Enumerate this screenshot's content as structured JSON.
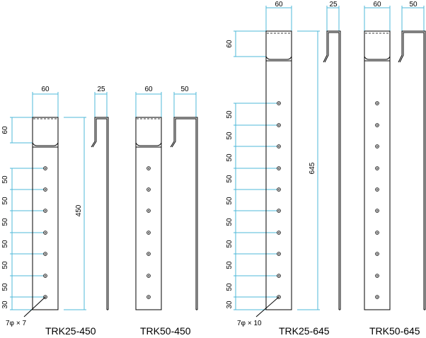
{
  "title": "",
  "brackets": [
    {
      "model": "TRK25-450",
      "width": "60",
      "depth": "25",
      "top": "60",
      "length": "450",
      "spacings": [
        "50",
        "50",
        "50",
        "50",
        "50",
        "50"
      ],
      "bottom": "30",
      "holes": 7,
      "hole_note": "7φ × 7",
      "long_leg": "450",
      "short_leg": "25"
    },
    {
      "model": "TRK50-450",
      "width": "60",
      "depth": "50",
      "holes": 7
    },
    {
      "model": "TRK25-645",
      "width": "60",
      "depth": "25",
      "top": "60",
      "length": "645",
      "spacings": [
        "50",
        "50",
        "50",
        "50",
        "50",
        "50",
        "50",
        "50",
        "50"
      ],
      "bottom": "30",
      "holes": 10,
      "hole_note": "7φ × 10"
    },
    {
      "model": "TRK50-645",
      "width": "60",
      "depth": "50",
      "holes": 10
    }
  ],
  "colors": {
    "dimension": "#4fb8d8",
    "outline": "#000000"
  }
}
